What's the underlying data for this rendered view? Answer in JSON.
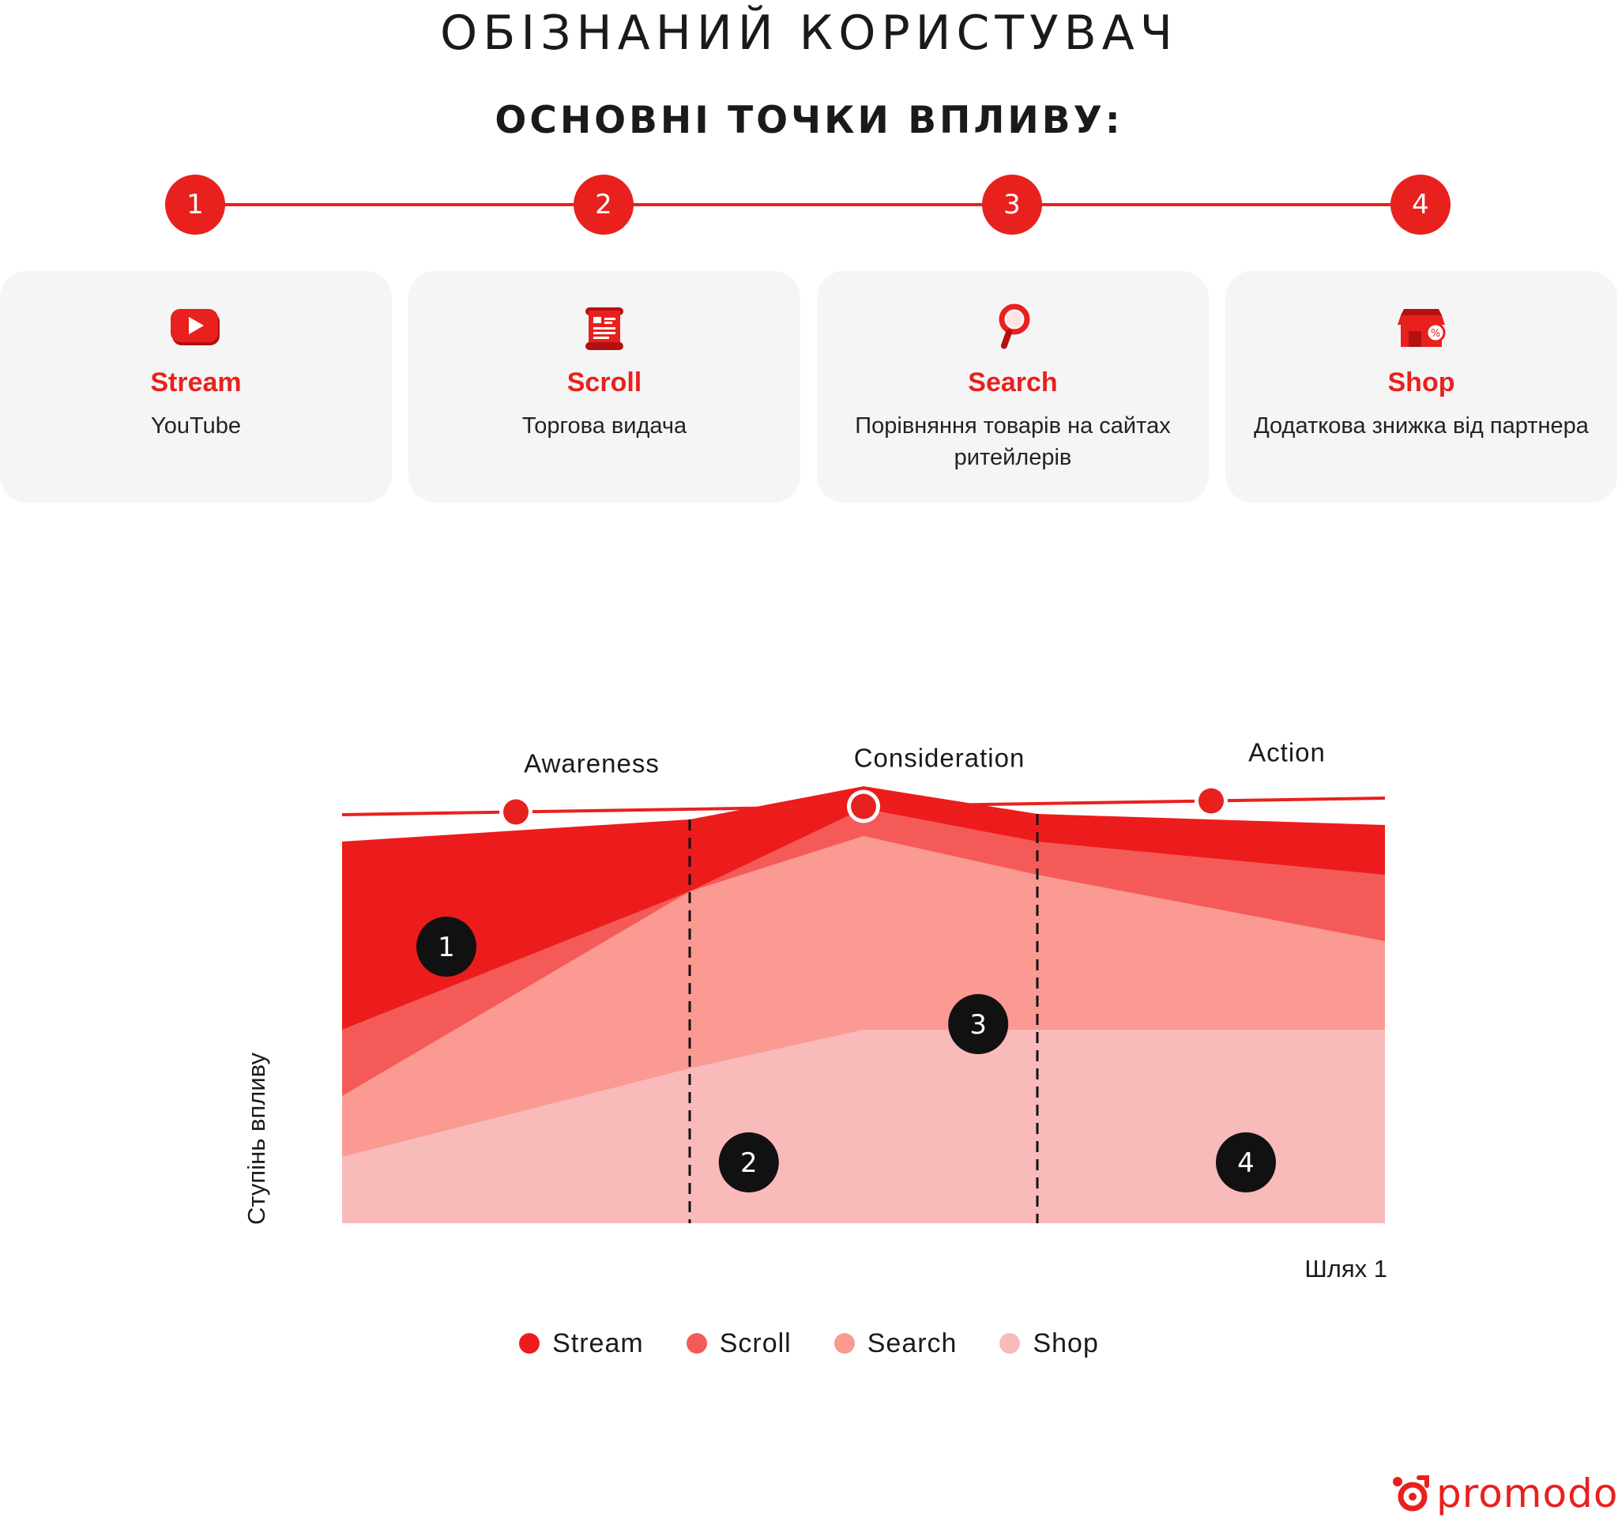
{
  "header": {
    "title": "ОБІЗНАНИЙ КОРИСТУВАЧ",
    "subtitle": "ОСНОВНІ ТОЧКИ ВПЛИВУ:"
  },
  "timeline": {
    "steps": [
      "1",
      "2",
      "3",
      "4"
    ]
  },
  "cards": [
    {
      "title": "Stream",
      "description": "YouTube",
      "icon": "youtube-icon"
    },
    {
      "title": "Scroll",
      "description": "Торгова видача",
      "icon": "scroll-icon"
    },
    {
      "title": "Search",
      "description": "Порівняння товарів на сайтах ритейлерів",
      "icon": "magnifier-icon"
    },
    {
      "title": "Shop",
      "description": "Додаткова знижка від партнера",
      "icon": "shop-icon"
    }
  ],
  "colors": {
    "accent": "#e8211e",
    "stream": "#ed1c1c",
    "scroll": "#f45b58",
    "search": "#fb9993",
    "shop": "#f9baba",
    "badge": "#111111",
    "card_bg": "#f5f5f5"
  },
  "chart_data": {
    "type": "area",
    "stacked": true,
    "x": [
      0,
      1,
      1.5,
      2,
      3
    ],
    "series": [
      {
        "name": "Stream",
        "values": [
          34,
          13,
          4,
          5,
          9
        ]
      },
      {
        "name": "Scroll",
        "values": [
          12,
          0,
          5,
          6,
          12
        ]
      },
      {
        "name": "Search",
        "values": [
          11,
          32,
          35,
          28,
          16
        ]
      },
      {
        "name": "Shop",
        "values": [
          12,
          28,
          35,
          35,
          35
        ]
      }
    ],
    "ylim": [
      0,
      104
    ],
    "xlim": [
      0,
      3
    ],
    "stage_dividers": [
      1,
      2
    ],
    "xlabel": "Шлях 1",
    "ylabel": "Ступінь впливу",
    "stages": [
      "Awareness",
      "Consideration",
      "Action"
    ],
    "area_badges": [
      "1",
      "2",
      "3",
      "4"
    ],
    "legend": [
      "Stream",
      "Scroll",
      "Search",
      "Shop"
    ],
    "legend_position": "bottom",
    "grid": false
  },
  "brand": {
    "name": "promodo"
  }
}
